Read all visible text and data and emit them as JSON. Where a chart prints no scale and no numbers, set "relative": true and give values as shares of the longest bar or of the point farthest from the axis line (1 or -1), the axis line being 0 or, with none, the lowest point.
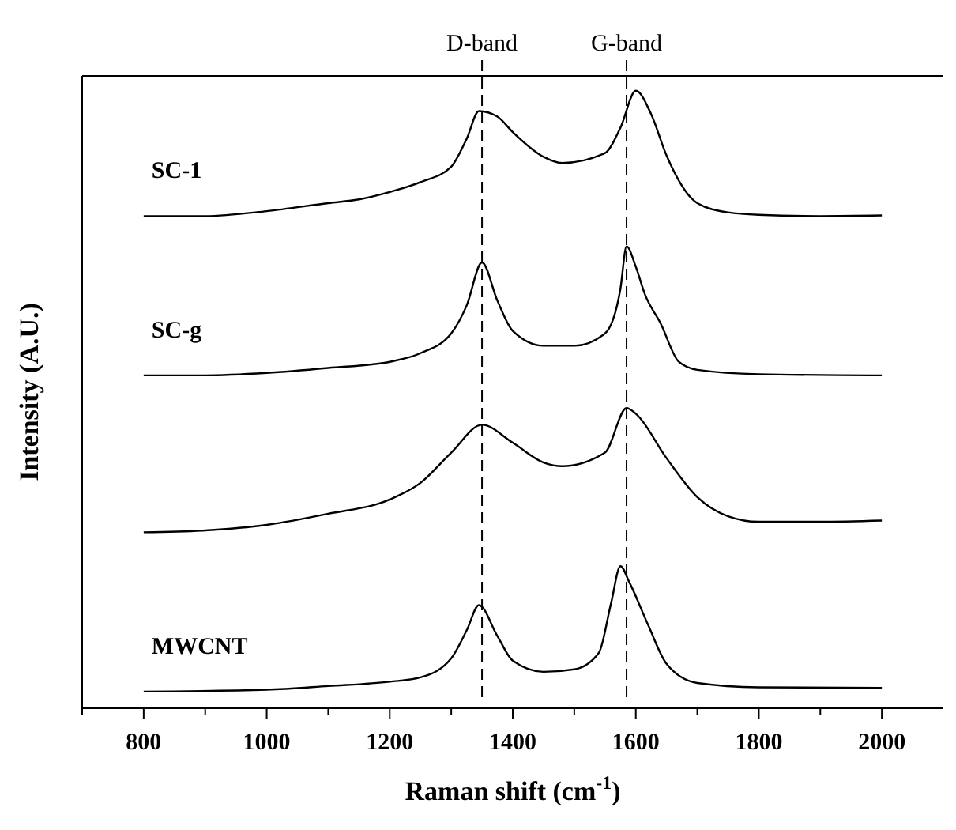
{
  "chart_data": {
    "type": "line",
    "xlabel": "Raman shift (cm$^{-1}$)",
    "ylabel": "Intensity (A.U.)",
    "relative": true,
    "line_style": "solid",
    "xlim": [
      700,
      2100
    ],
    "xticks": [
      {
        "value": 700,
        "label": null
      },
      800,
      {
        "value": 900,
        "label": null
      },
      1000,
      {
        "value": 1100,
        "label": null
      },
      1200,
      {
        "value": 1300,
        "label": null
      },
      1400,
      {
        "value": 1500,
        "label": null
      },
      1600,
      {
        "value": 1700,
        "label": null
      },
      1800,
      {
        "value": 1900,
        "label": null
      },
      2000,
      {
        "value": 2100,
        "label": null
      }
    ],
    "ref_lines": [
      {
        "axis": "x",
        "value": 1350,
        "label": "D-band",
        "line_style": "dashed",
        "color": "#000000"
      },
      {
        "axis": "x",
        "value": 1585,
        "label": "G-band",
        "line_style": "dashed",
        "color": "#000000"
      }
    ],
    "series": [
      {
        "name": "SC-1",
        "color": "#000000",
        "x": [
          800,
          900,
          1000,
          1100,
          1150,
          1200,
          1250,
          1300,
          1325,
          1345,
          1375,
          1400,
          1450,
          1480,
          1550,
          1575,
          1600,
          1625,
          1650,
          1700,
          1750,
          1800,
          1900,
          2000
        ],
        "values": [
          0.797,
          0.797,
          0.805,
          0.818,
          0.824,
          0.836,
          0.852,
          0.877,
          0.922,
          0.967,
          0.958,
          0.933,
          0.893,
          0.883,
          0.899,
          0.94,
          1.0,
          0.962,
          0.895,
          0.818,
          0.803,
          0.799,
          0.797,
          0.798
        ]
      },
      {
        "name": "SC-g",
        "color": "#000000",
        "x": [
          800,
          900,
          1000,
          1100,
          1200,
          1250,
          1300,
          1325,
          1350,
          1375,
          1400,
          1450,
          1500,
          1550,
          1575,
          1585,
          1600,
          1615,
          1640,
          1670,
          1700,
          1800,
          2000
        ],
        "values": [
          0.539,
          0.539,
          0.543,
          0.551,
          0.561,
          0.575,
          0.607,
          0.652,
          0.722,
          0.66,
          0.611,
          0.587,
          0.587,
          0.607,
          0.679,
          0.748,
          0.715,
          0.67,
          0.624,
          0.561,
          0.548,
          0.541,
          0.539
        ]
      },
      {
        "color": "#000000",
        "x": [
          800,
          900,
          1000,
          1100,
          1200,
          1250,
          1300,
          1350,
          1400,
          1450,
          1480,
          1550,
          1585,
          1600,
          1650,
          1700,
          1750,
          1800,
          1900,
          2000
        ],
        "values": [
          0.285,
          0.288,
          0.297,
          0.315,
          0.338,
          0.365,
          0.414,
          0.459,
          0.43,
          0.398,
          0.392,
          0.414,
          0.486,
          0.477,
          0.405,
          0.342,
          0.311,
          0.302,
          0.302,
          0.304
        ]
      },
      {
        "name": "MWCNT",
        "color": "#000000",
        "x": [
          800,
          1000,
          1100,
          1200,
          1250,
          1300,
          1325,
          1345,
          1375,
          1400,
          1450,
          1500,
          1540,
          1560,
          1575,
          1590,
          1620,
          1650,
          1700,
          1800,
          2000
        ],
        "values": [
          0.027,
          0.03,
          0.036,
          0.043,
          0.05,
          0.081,
          0.126,
          0.167,
          0.117,
          0.077,
          0.059,
          0.063,
          0.09,
          0.171,
          0.23,
          0.203,
          0.135,
          0.072,
          0.041,
          0.034,
          0.033
        ]
      }
    ]
  }
}
